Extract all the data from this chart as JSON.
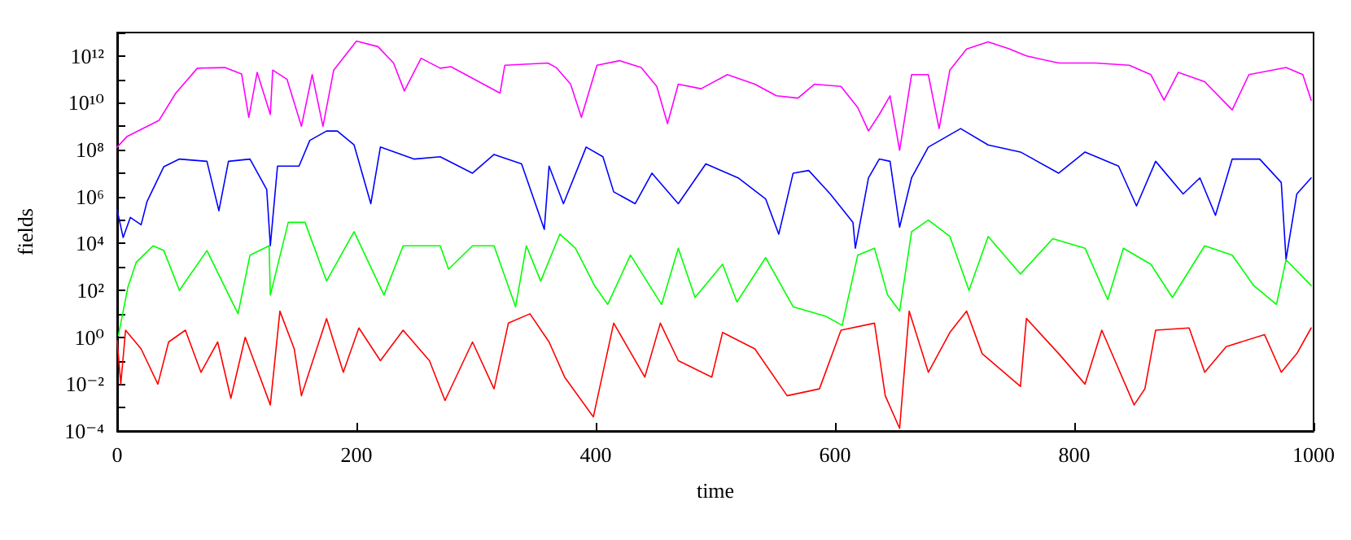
{
  "chart_data": {
    "type": "line",
    "xlabel": "time",
    "ylabel": "fields",
    "log": "y",
    "grid": false,
    "marker": "none",
    "line_style": "solid",
    "xlim": [
      0,
      1000
    ],
    "xticks": [
      0,
      200,
      400,
      600,
      800,
      1000
    ],
    "ylim": [
      0.0001,
      10000000000000.0
    ],
    "yticks": [
      {
        "value": 0.0001,
        "label": "10⁻⁴"
      },
      {
        "value": 0.001,
        "label": null
      },
      {
        "value": 0.01,
        "label": "10⁻²"
      },
      {
        "value": 0.1,
        "label": null
      },
      {
        "value": 1,
        "label": "10⁰"
      },
      {
        "value": 10,
        "label": null
      },
      {
        "value": 100,
        "label": "10²"
      },
      {
        "value": 1000,
        "label": null
      },
      {
        "value": 10000,
        "label": "10⁴"
      },
      {
        "value": 100000,
        "label": null
      },
      {
        "value": 1000000,
        "label": "10⁶"
      },
      {
        "value": 10000000,
        "label": null
      },
      {
        "value": 100000000,
        "label": "10⁸"
      },
      {
        "value": 1000000000,
        "label": null
      },
      {
        "value": 10000000000,
        "label": "10¹⁰"
      },
      {
        "value": 100000000000,
        "label": null
      },
      {
        "value": 1000000000000,
        "label": "10¹²"
      },
      {
        "value": 10000000000000,
        "label": null
      }
    ],
    "series": [
      {
        "color": "#ff00ff",
        "x": [
          0,
          8,
          35,
          49,
          67,
          90,
          104,
          110,
          117,
          128,
          130,
          142,
          154,
          163,
          172,
          181,
          200,
          218,
          231,
          240,
          254,
          270,
          279,
          320,
          324,
          360,
          367,
          379,
          388,
          401,
          420,
          438,
          451,
          460,
          469,
          488,
          510,
          533,
          551,
          569,
          583,
          605,
          619,
          628,
          637,
          646,
          654,
          664,
          678,
          687,
          696,
          710,
          728,
          746,
          760,
          787,
          818,
          846,
          864,
          875,
          887,
          909,
          932,
          946,
          977,
          991,
          998
        ],
        "values": [
          130000000.0,
          360000000.0,
          1800000000.0,
          26000000000.0,
          300000000000.0,
          320000000000.0,
          170000000000.0,
          2400000000.0,
          200000000000.0,
          3200000000.0,
          250000000000.0,
          100000000000.0,
          1000000000.0,
          160000000000.0,
          1000000000.0,
          250000000000.0,
          4300000000000.0,
          2500000000000.0,
          500000000000.0,
          32000000000.0,
          800000000000.0,
          300000000000.0,
          350000000000.0,
          26000000000.0,
          400000000000.0,
          500000000000.0,
          320000000000.0,
          63000000000.0,
          2400000000.0,
          400000000000.0,
          630000000000.0,
          320000000000.0,
          50000000000.0,
          1300000000.0,
          63000000000.0,
          40000000000.0,
          160000000000.0,
          63000000000.0,
          20000000000.0,
          16000000000.0,
          63000000000.0,
          50000000000.0,
          6300000000.0,
          630000000.0,
          3200000000.0,
          20000000000.0,
          95000000.0,
          160000000000.0,
          160000000000.0,
          800000000.0,
          250000000000.0,
          2000000000000.0,
          4000000000000.0,
          2000000000000.0,
          1000000000000.0,
          500000000000.0,
          500000000000.0,
          400000000000.0,
          160000000000.0,
          13000000000.0,
          200000000000.0,
          80000000000.0,
          5000000000.0,
          160000000000.0,
          320000000000.0,
          160000000000.0,
          13000000000.0
        ]
      },
      {
        "color": "#0000ff",
        "x": [
          0,
          5,
          11,
          20,
          25,
          39,
          52,
          75,
          85,
          93,
          111,
          125,
          128,
          134,
          152,
          161,
          175,
          184,
          198,
          212,
          220,
          248,
          270,
          297,
          315,
          338,
          357,
          361,
          373,
          392,
          406,
          415,
          433,
          447,
          469,
          492,
          519,
          542,
          553,
          565,
          578,
          596,
          615,
          617,
          628,
          637,
          646,
          654,
          664,
          678,
          705,
          728,
          755,
          787,
          809,
          837,
          852,
          868,
          891,
          905,
          918,
          932,
          955,
          973,
          977,
          986,
          998
        ],
        "values": [
          260000.0,
          18000.0,
          130000.0,
          63000.0,
          630000.0,
          19000000.0,
          40000000.0,
          32000000.0,
          250000.0,
          32000000.0,
          40000000.0,
          2000000.0,
          8000.0,
          20000000.0,
          20000000.0,
          250000000.0,
          630000000.0,
          630000000.0,
          160000000.0,
          500000.0,
          130000000.0,
          40000000.0,
          50000000.0,
          10000000.0,
          63000000.0,
          25000000.0,
          40000.0,
          20000000.0,
          500000.0,
          130000000.0,
          50000000.0,
          1600000.0,
          500000.0,
          10000000.0,
          500000.0,
          25000000.0,
          6300000.0,
          800000.0,
          25000.0,
          10000000.0,
          13000000.0,
          1300000.0,
          80000.0,
          6300.0,
          6300000.0,
          40000000.0,
          32000000.0,
          50000.0,
          6300000.0,
          130000000.0,
          800000000.0,
          160000000.0,
          80000000.0,
          10000000.0,
          80000000.0,
          20000000.0,
          400000.0,
          32000000.0,
          1300000.0,
          6300000.0,
          160000.0,
          40000000.0,
          40000000.0,
          4000000.0,
          2100.0,
          1300000.0,
          6300000.0
        ]
      },
      {
        "color": "#00ff00",
        "x": [
          1,
          9,
          16,
          30,
          39,
          52,
          75,
          101,
          111,
          127,
          128,
          143,
          157,
          175,
          198,
          223,
          239,
          270,
          277,
          297,
          315,
          333,
          342,
          354,
          370,
          383,
          399,
          410,
          429,
          455,
          469,
          483,
          506,
          518,
          542,
          565,
          592,
          606,
          619,
          633,
          644,
          654,
          664,
          678,
          696,
          712,
          728,
          755,
          782,
          809,
          828,
          841,
          864,
          882,
          909,
          932,
          950,
          969,
          977,
          998
        ],
        "values": [
          1.2,
          140,
          1600,
          8000,
          5000,
          100,
          5000,
          10,
          3200,
          8000,
          63,
          80000.0,
          80000.0,
          250,
          32000.0,
          63,
          8000,
          8000,
          800,
          8000,
          8000,
          20,
          8000,
          250,
          25000.0,
          6300,
          160,
          25,
          3200,
          25,
          6300,
          50,
          1300,
          32,
          2500,
          20,
          8,
          3.2,
          3200,
          6300,
          63,
          13,
          32000.0,
          100000.0,
          20000.0,
          100,
          20000.0,
          500,
          16000.0,
          6300,
          40,
          6300,
          1300,
          50,
          8000,
          3200,
          160,
          25,
          2000,
          160
        ]
      },
      {
        "color": "#ff0000",
        "x": [
          0,
          3,
          7,
          20,
          34,
          43,
          57,
          70,
          84,
          95,
          107,
          128,
          136,
          148,
          154,
          175,
          189,
          202,
          220,
          239,
          261,
          274,
          297,
          315,
          327,
          345,
          361,
          374,
          398,
          415,
          441,
          454,
          469,
          497,
          506,
          533,
          560,
          587,
          605,
          633,
          642,
          654,
          662,
          678,
          696,
          710,
          723,
          755,
          760,
          787,
          809,
          823,
          850,
          859,
          868,
          896,
          909,
          927,
          959,
          973,
          986,
          998
        ],
        "values": [
          0.7,
          0.01,
          2,
          0.32,
          0.01,
          0.63,
          2,
          0.032,
          0.63,
          0.0025,
          1,
          0.0013,
          13,
          0.32,
          0.0032,
          6.3,
          0.032,
          2.5,
          0.1,
          2,
          0.1,
          0.002,
          0.63,
          0.0063,
          4,
          10,
          0.63,
          0.02,
          0.0004,
          4,
          0.02,
          4,
          0.1,
          0.02,
          1.6,
          0.32,
          0.0032,
          0.0063,
          2,
          4,
          0.0032,
          0.00013,
          13,
          0.032,
          1.6,
          13,
          0.2,
          0.008,
          6.3,
          0.2,
          0.01,
          2,
          0.0013,
          0.0063,
          2,
          2.5,
          0.032,
          0.4,
          1.3,
          0.032,
          0.2,
          2.5
        ]
      }
    ]
  }
}
